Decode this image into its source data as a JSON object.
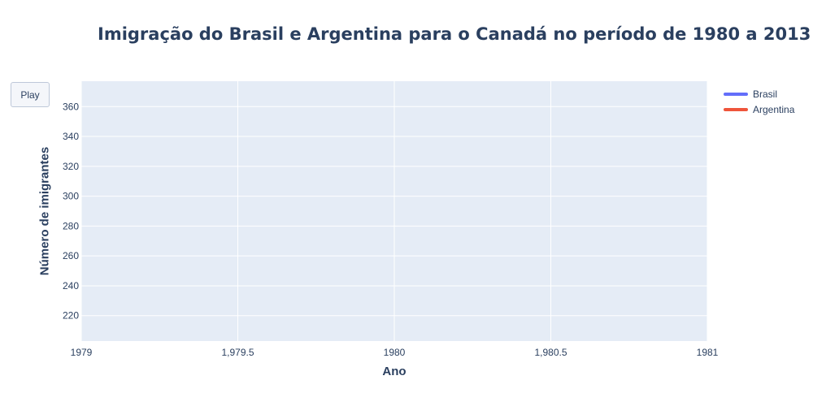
{
  "controls": {
    "play_label": "Play"
  },
  "chart_data": {
    "type": "line",
    "title": "Imigração do Brasil e Argentina para o Canadá no período de 1980 a 2013",
    "xlabel": "Ano",
    "ylabel": "Número de imigrantes",
    "xlim": [
      1979,
      1981
    ],
    "ylim": [
      203,
      377
    ],
    "x_ticks": [
      "1979",
      "1,979.5",
      "1980",
      "1,980.5",
      "1981"
    ],
    "x_tick_values": [
      1979,
      1979.5,
      1980,
      1980.5,
      1981
    ],
    "y_ticks": [
      220,
      240,
      260,
      280,
      300,
      320,
      340,
      360
    ],
    "grid": true,
    "legend_position": "top-right",
    "series": [
      {
        "name": "Brasil",
        "color": "#636efa",
        "x": [],
        "y": []
      },
      {
        "name": "Argentina",
        "color": "#ef553b",
        "x": [],
        "y": []
      }
    ],
    "colors": {
      "plot_background": "#e5ecf6",
      "gridline": "#ffffff",
      "text": "#2a3f5f"
    }
  }
}
